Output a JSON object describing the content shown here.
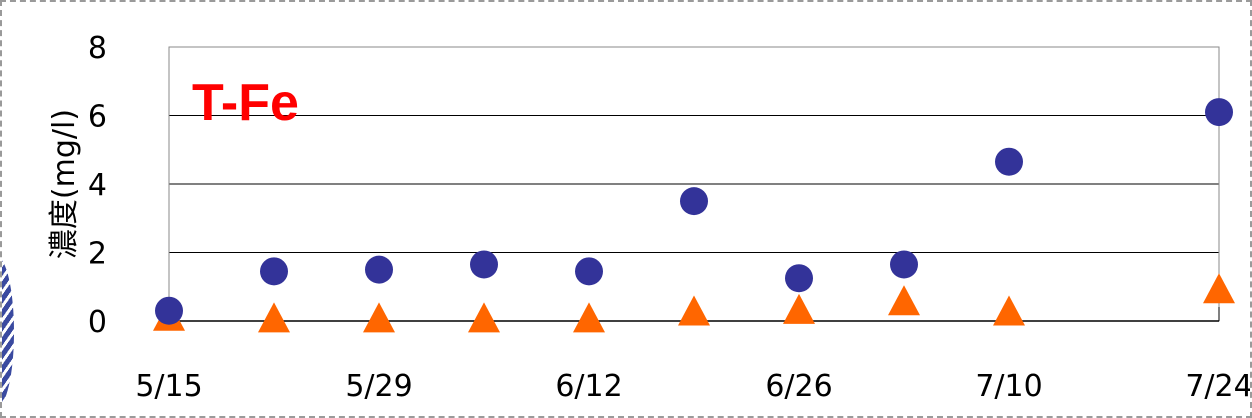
{
  "chart_data": {
    "type": "scatter",
    "title": "T-Fe",
    "title_color": "#ff0000",
    "ylabel": "濃度(mg/l)",
    "xlabel": "",
    "ylim": [
      0,
      8
    ],
    "yticks": [
      "0",
      "2",
      "4",
      "6",
      "8"
    ],
    "xlim": [
      "5/15",
      "7/24"
    ],
    "xticks": [
      "5/15",
      "5/29",
      "6/12",
      "6/26",
      "7/10",
      "7/24"
    ],
    "grid": "horizontal",
    "legend": "none",
    "series": [
      {
        "marker": "circle",
        "color": "#333399",
        "points": [
          {
            "x": "5/15",
            "y": 0.3
          },
          {
            "x": "5/22",
            "y": 1.45
          },
          {
            "x": "5/29",
            "y": 1.5
          },
          {
            "x": "6/5",
            "y": 1.65
          },
          {
            "x": "6/12",
            "y": 1.45
          },
          {
            "x": "6/19",
            "y": 3.5
          },
          {
            "x": "6/26",
            "y": 1.25
          },
          {
            "x": "7/3",
            "y": 1.65
          },
          {
            "x": "7/10",
            "y": 4.65
          },
          {
            "x": "7/24",
            "y": 6.1
          }
        ]
      },
      {
        "marker": "triangle",
        "color": "#ff6600",
        "points": [
          {
            "x": "5/15",
            "y": 0.05
          },
          {
            "x": "5/22",
            "y": 0.0
          },
          {
            "x": "5/29",
            "y": 0.0
          },
          {
            "x": "6/5",
            "y": 0.0
          },
          {
            "x": "6/12",
            "y": 0.0
          },
          {
            "x": "6/19",
            "y": 0.2
          },
          {
            "x": "6/26",
            "y": 0.25
          },
          {
            "x": "7/3",
            "y": 0.5
          },
          {
            "x": "7/10",
            "y": 0.2
          },
          {
            "x": "7/24",
            "y": 0.85
          }
        ]
      }
    ]
  }
}
